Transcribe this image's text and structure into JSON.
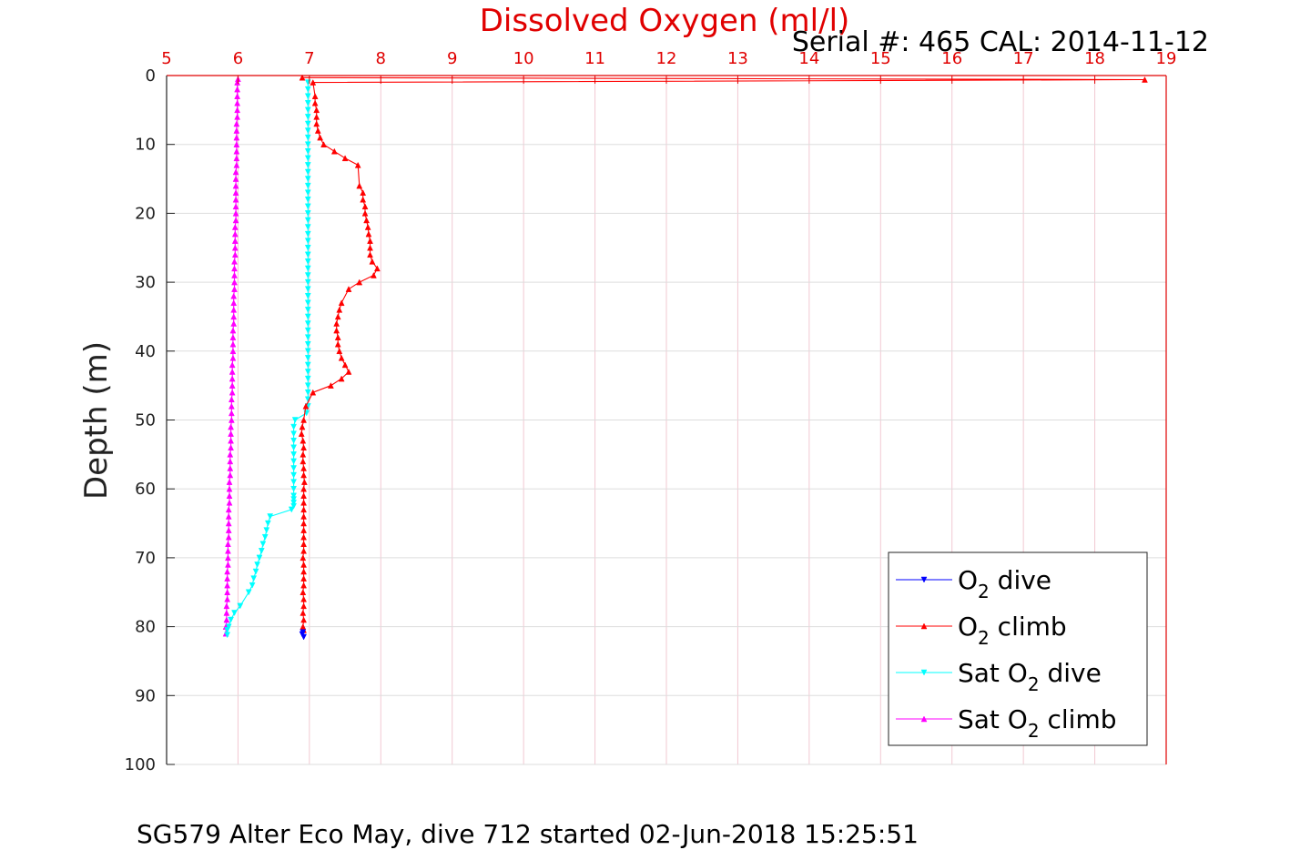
{
  "chart_data": {
    "type": "line",
    "title": "Dissolved Oxygen (ml/l)",
    "subtitle": "Serial #: 465  CAL: 2014-11-12",
    "xlabel": "",
    "ylabel": "Depth (m)",
    "caption": "SG579 Alter Eco May, dive 712 started 02-Jun-2018 15:25:51",
    "xlim": [
      5,
      19
    ],
    "ylim": [
      0,
      100
    ],
    "y_reversed": true,
    "x_axis_position": "top",
    "grid": true,
    "x_ticks": [
      "5",
      "6",
      "7",
      "8",
      "9",
      "10",
      "11",
      "12",
      "13",
      "14",
      "15",
      "16",
      "17",
      "18",
      "19"
    ],
    "y_ticks": [
      "0",
      "10",
      "20",
      "30",
      "40",
      "50",
      "60",
      "70",
      "80",
      "90",
      "100"
    ],
    "legend": {
      "position": "bottom-right",
      "entries": [
        {
          "prefix": "O",
          "sub": "2",
          "suffix": " dive",
          "color": "#0000ff"
        },
        {
          "prefix": "O",
          "sub": "2",
          "suffix": " climb",
          "color": "#ff0000"
        },
        {
          "prefix": "Sat O",
          "sub": "2",
          "suffix": " dive",
          "color": "#00ffff"
        },
        {
          "prefix": "Sat O",
          "sub": "2",
          "suffix": " climb",
          "color": "#ff00ff"
        }
      ]
    },
    "series": [
      {
        "name": "O2 dive",
        "color": "#0000ff",
        "marker": "triangle-down",
        "x": [
          6.91,
          6.9,
          6.92
        ],
        "y": [
          80.8,
          81.1,
          81.5
        ]
      },
      {
        "name": "O2 climb",
        "color": "#ff0000",
        "marker": "triangle-up",
        "x": [
          6.92,
          6.91,
          6.92,
          6.91,
          6.92,
          6.92,
          6.91,
          6.92,
          6.92,
          6.92,
          6.92,
          6.91,
          6.92,
          6.92,
          6.92,
          6.92,
          6.92,
          6.92,
          6.92,
          6.92,
          6.92,
          6.92,
          6.93,
          6.92,
          6.92,
          6.91,
          6.91,
          6.92,
          6.91,
          6.89,
          6.9,
          6.92,
          6.95,
          7.05,
          7.3,
          7.45,
          7.55,
          7.5,
          7.45,
          7.42,
          7.4,
          7.4,
          7.38,
          7.38,
          7.4,
          7.42,
          7.45,
          7.55,
          7.7,
          7.9,
          7.95,
          7.88,
          7.85,
          7.85,
          7.85,
          7.83,
          7.82,
          7.8,
          7.78,
          7.78,
          7.75,
          7.75,
          7.7,
          7.68,
          7.5,
          7.35,
          7.2,
          7.15,
          7.12,
          7.1,
          7.1,
          7.1,
          7.08,
          7.08,
          7.05,
          18.7,
          6.9
        ],
        "y": [
          80.5,
          80.0,
          79.0,
          78.0,
          77.0,
          76.0,
          75.0,
          74.0,
          73.0,
          72.0,
          71.0,
          70.0,
          69.0,
          68.0,
          67.0,
          66.0,
          65.0,
          64.0,
          63.0,
          62.0,
          61.0,
          60.0,
          59.0,
          58.0,
          57.0,
          56.0,
          55.0,
          54.0,
          53.0,
          52.0,
          51.0,
          50.0,
          48.0,
          46.0,
          45.0,
          44.0,
          43.0,
          42.0,
          41.0,
          40.0,
          39.0,
          38.0,
          37.0,
          36.0,
          35.0,
          34.0,
          33.0,
          31.0,
          30.0,
          29.0,
          28.0,
          27.0,
          26.0,
          25.0,
          24.0,
          23.0,
          22.0,
          21.0,
          20.0,
          19.0,
          18.0,
          17.0,
          16.0,
          13.0,
          12.0,
          11.0,
          10.0,
          9.0,
          8.0,
          7.0,
          6.0,
          5.0,
          4.0,
          3.0,
          1.0,
          0.6,
          0.3
        ]
      },
      {
        "name": "Sat O2 dive",
        "color": "#00ffff",
        "marker": "triangle-down",
        "x": [
          6.98,
          6.98,
          6.98,
          6.98,
          6.98,
          6.98,
          6.98,
          6.98,
          6.98,
          6.98,
          6.98,
          6.98,
          6.98,
          6.98,
          6.98,
          6.98,
          6.98,
          6.98,
          6.98,
          6.98,
          6.98,
          6.98,
          6.98,
          6.98,
          6.98,
          6.98,
          6.98,
          6.98,
          6.98,
          6.98,
          6.98,
          6.98,
          6.98,
          6.98,
          6.98,
          6.98,
          6.98,
          6.98,
          6.98,
          6.98,
          6.98,
          6.98,
          6.98,
          6.98,
          6.98,
          6.98,
          6.98,
          6.98,
          6.96,
          6.8,
          6.78,
          6.78,
          6.78,
          6.78,
          6.78,
          6.78,
          6.78,
          6.78,
          6.78,
          6.78,
          6.78,
          6.78,
          6.78,
          6.78,
          6.75,
          6.45,
          6.42,
          6.4,
          6.38,
          6.35,
          6.33,
          6.3,
          6.27,
          6.25,
          6.22,
          6.2,
          6.15,
          6.03,
          5.95,
          5.9,
          5.87,
          5.85,
          5.85
        ],
        "y": [
          1,
          2,
          3,
          4,
          5,
          6,
          7,
          8,
          9,
          10,
          11,
          12,
          13,
          14,
          15,
          16,
          17,
          18,
          19,
          20,
          21,
          22,
          23,
          24,
          25,
          26,
          27,
          28,
          29,
          30,
          31,
          32,
          33,
          34,
          35,
          36,
          37,
          38,
          39,
          40,
          41,
          42,
          43,
          44,
          45,
          46,
          47,
          48,
          49,
          50,
          51,
          52,
          53,
          54,
          55,
          56,
          57,
          58,
          59,
          60,
          61,
          61.5,
          62,
          62.5,
          63,
          64,
          65,
          66,
          67,
          68,
          69,
          70,
          71,
          72,
          73,
          74,
          75,
          77,
          78,
          79,
          80,
          80.5,
          81.2
        ]
      },
      {
        "name": "Sat O2 climb",
        "color": "#ff00ff",
        "marker": "triangle-up",
        "x": [
          5.83,
          5.83,
          5.84,
          5.84,
          5.84,
          5.85,
          5.85,
          5.85,
          5.85,
          5.85,
          5.86,
          5.86,
          5.86,
          5.86,
          5.87,
          5.87,
          5.87,
          5.87,
          5.87,
          5.88,
          5.88,
          5.88,
          5.88,
          5.89,
          5.89,
          5.89,
          5.89,
          5.9,
          5.9,
          5.9,
          5.9,
          5.91,
          5.91,
          5.91,
          5.91,
          5.92,
          5.92,
          5.92,
          5.92,
          5.92,
          5.93,
          5.93,
          5.93,
          5.93,
          5.93,
          5.94,
          5.94,
          5.94,
          5.94,
          5.94,
          5.95,
          5.95,
          5.95,
          5.95,
          5.95,
          5.96,
          5.96,
          5.96,
          5.96,
          5.96,
          5.97,
          5.97,
          5.97,
          5.97,
          5.97,
          5.97,
          5.97,
          5.97,
          5.98,
          5.98,
          5.98,
          5.98,
          5.98,
          5.98,
          5.98,
          5.99,
          5.99,
          5.99,
          5.99,
          5.99,
          5.99,
          6.0
        ],
        "y": [
          81,
          80,
          79,
          78,
          77,
          76,
          75,
          74,
          73,
          72,
          71,
          70,
          69,
          68,
          67,
          66,
          65,
          64,
          63,
          62,
          61,
          60,
          59,
          58,
          57,
          56,
          55,
          54,
          53,
          52,
          51,
          50,
          49,
          48,
          47,
          46,
          45,
          44,
          43,
          42,
          41,
          40,
          39,
          38,
          37,
          36,
          35,
          34,
          33,
          32,
          31,
          30,
          29,
          28,
          27,
          26,
          25,
          24,
          23,
          22,
          21,
          20,
          19,
          18,
          17,
          16,
          15,
          14,
          13,
          12,
          11,
          10,
          9,
          8,
          7,
          6,
          5,
          4,
          3,
          2,
          1,
          0.5
        ]
      }
    ]
  }
}
